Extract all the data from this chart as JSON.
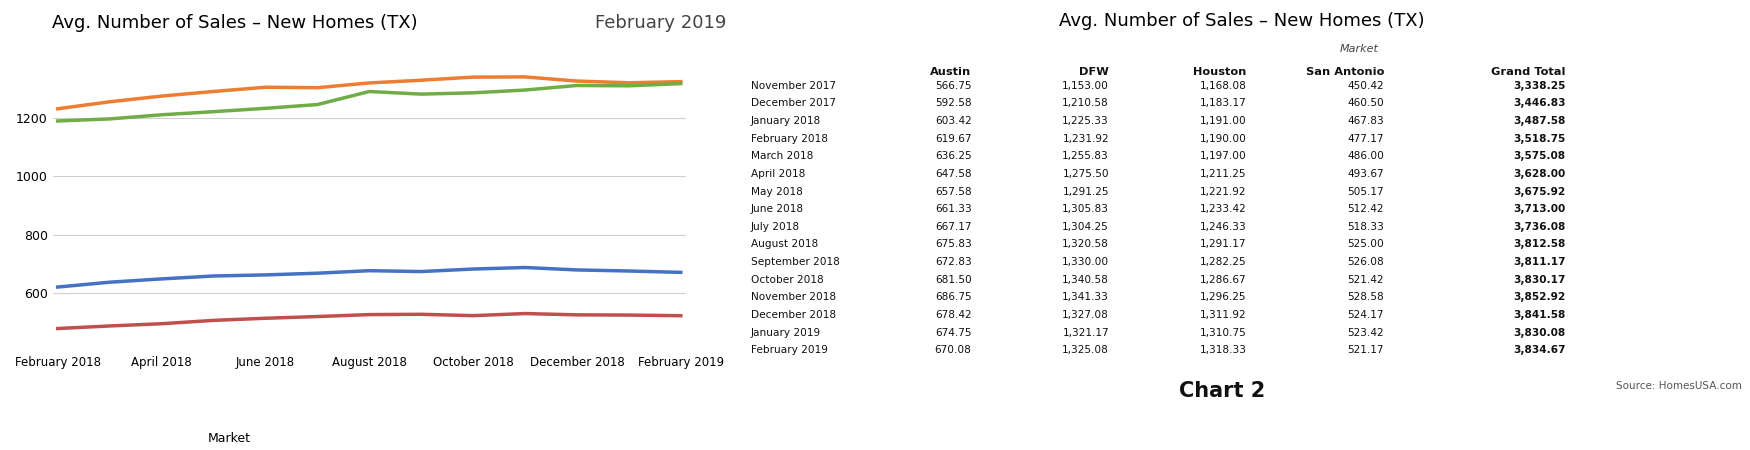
{
  "chart_title": "Avg. Number of Sales – New Homes (TX)",
  "subtitle": "February 2019",
  "table_title": "Avg. Number of Sales – New Homes (TX)",
  "source": "Source: HomesUSA.com",
  "chart2_label": "Chart 2",
  "months": [
    "November 2017",
    "December 2017",
    "January 2018",
    "February 2018",
    "March 2018",
    "April 2018",
    "May 2018",
    "June 2018",
    "July 2018",
    "August 2018",
    "September 2018",
    "October 2018",
    "November 2018",
    "December 2018",
    "January 2019",
    "February 2019"
  ],
  "austin": [
    566.75,
    592.58,
    603.42,
    619.67,
    636.25,
    647.58,
    657.58,
    661.33,
    667.17,
    675.83,
    672.83,
    681.5,
    686.75,
    678.42,
    674.75,
    670.08
  ],
  "dfw": [
    1153.0,
    1210.58,
    1225.33,
    1231.92,
    1255.83,
    1275.5,
    1291.25,
    1305.83,
    1304.25,
    1320.58,
    1330.0,
    1340.58,
    1341.33,
    1327.08,
    1321.17,
    1325.08
  ],
  "houston": [
    1168.08,
    1183.17,
    1191.0,
    1190.0,
    1197.0,
    1211.25,
    1221.92,
    1233.42,
    1246.33,
    1291.17,
    1282.25,
    1286.67,
    1296.25,
    1311.92,
    1310.75,
    1318.33
  ],
  "san_antonio": [
    450.42,
    460.5,
    467.83,
    477.17,
    486.0,
    493.67,
    505.17,
    512.42,
    518.33,
    525.0,
    526.08,
    521.42,
    528.58,
    524.17,
    523.42,
    521.17
  ],
  "grand_total": [
    3338.25,
    3446.83,
    3487.58,
    3518.75,
    3575.08,
    3628.0,
    3675.92,
    3713.0,
    3736.08,
    3812.58,
    3811.17,
    3830.17,
    3852.92,
    3841.58,
    3830.08,
    3834.67
  ],
  "color_austin": "#4472c4",
  "color_dfw": "#ed7d31",
  "color_houston": "#70ad47",
  "color_san_antonio": "#c0504d",
  "line_width": 2.5,
  "x_tick_labels": [
    "February 2018",
    "April 2018",
    "June 2018",
    "August 2018",
    "October 2018",
    "December 2018",
    "February 2019"
  ],
  "x_tick_indices": [
    3,
    5,
    7,
    9,
    11,
    13,
    15
  ],
  "yticks": [
    600,
    800,
    1000,
    1200
  ],
  "ylim": [
    400,
    1420
  ],
  "background_color": "#ffffff",
  "grid_color": "#d0d0d0"
}
